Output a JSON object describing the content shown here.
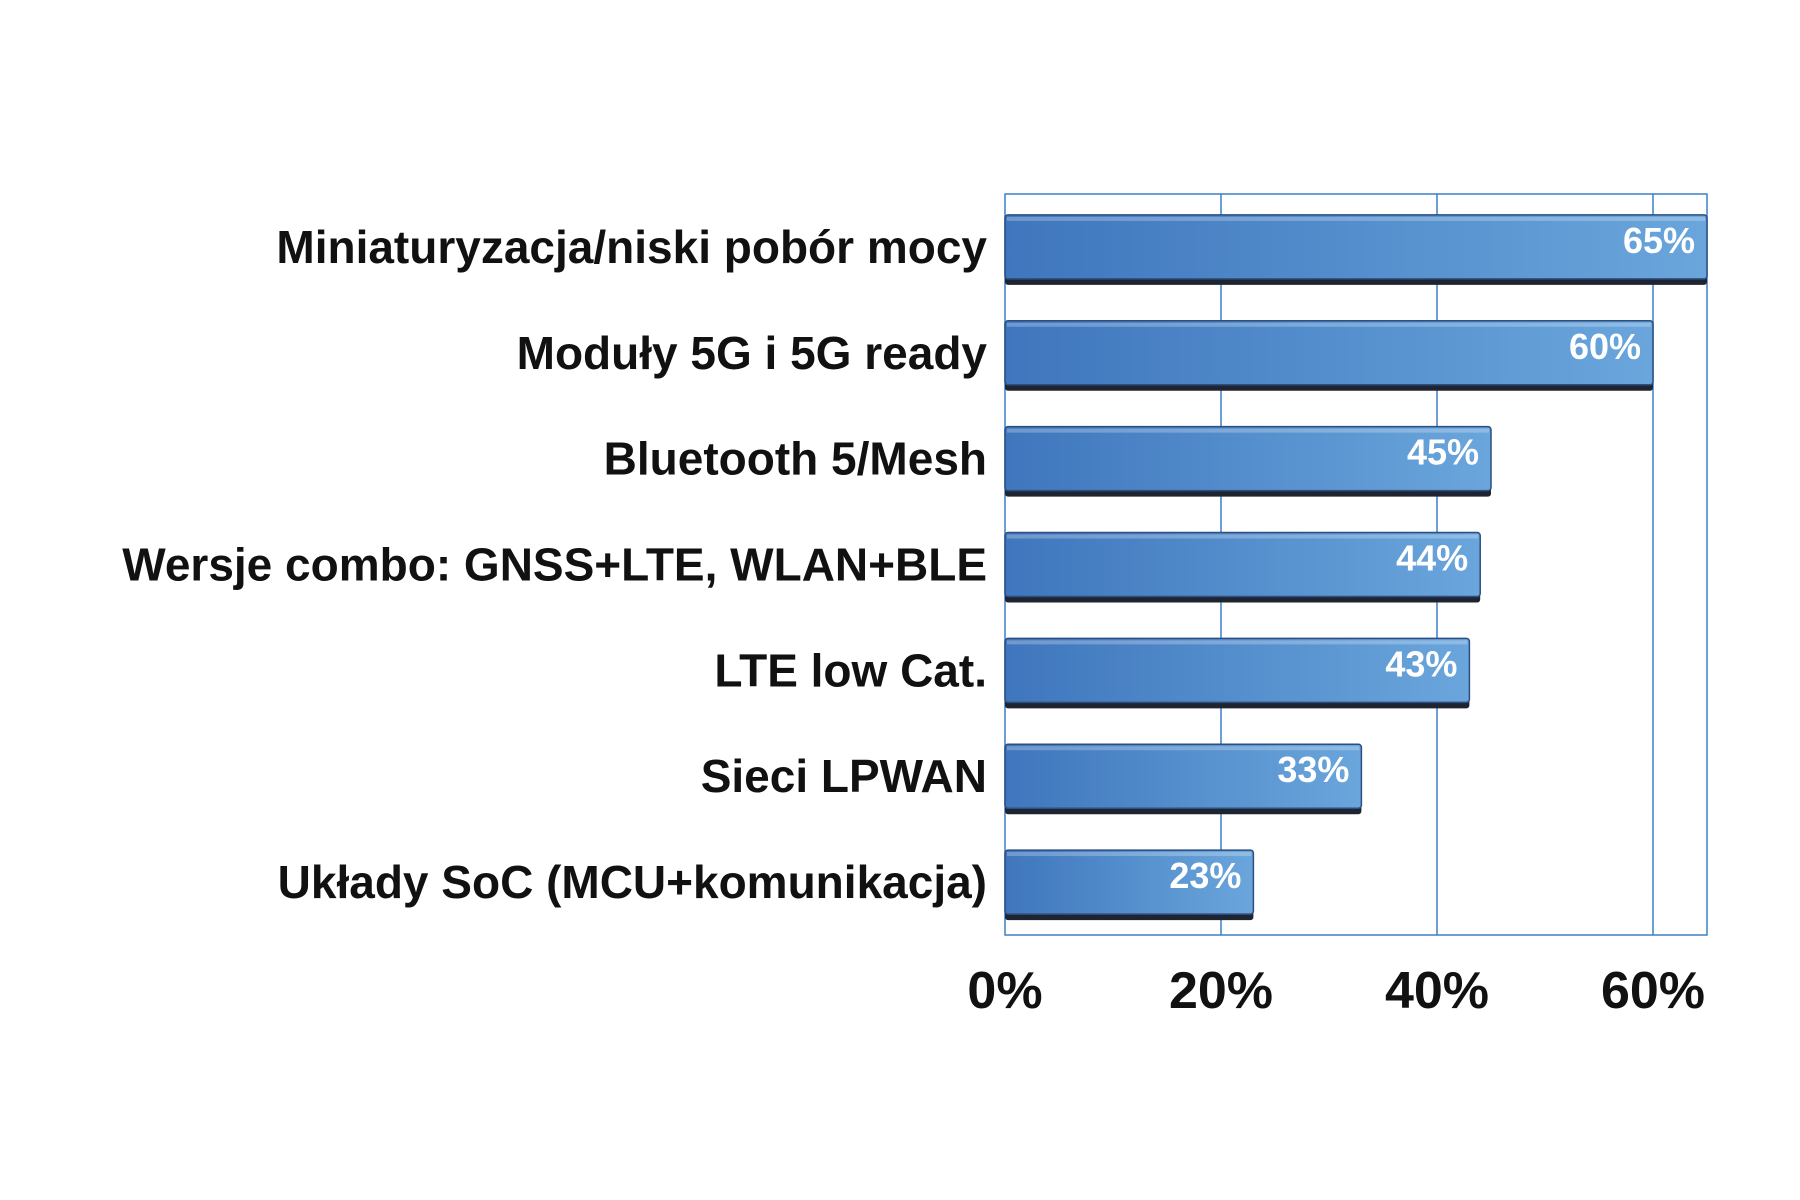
{
  "chart_data": {
    "type": "bar",
    "orientation": "horizontal",
    "categories": [
      "Miniaturyzacja/niski pobór mocy",
      "Moduły 5G i 5G ready",
      "Bluetooth 5/Mesh",
      "Wersje combo: GNSS+LTE, WLAN+BLE",
      "LTE low Cat.",
      "Sieci LPWAN",
      "Układy SoC (MCU+komunikacja)"
    ],
    "values": [
      65,
      60,
      45,
      44,
      43,
      33,
      23
    ],
    "data_labels": [
      "65%",
      "60%",
      "45%",
      "44%",
      "43%",
      "33%",
      "23%"
    ],
    "x_ticks": [
      0,
      20,
      40,
      60
    ],
    "x_tick_labels": [
      "0%",
      "20%",
      "40%",
      "60%"
    ],
    "xlim": [
      0,
      65
    ],
    "grid": true,
    "colors": {
      "bar_light": "#6aa6dc",
      "bar_dark": "#3f76bd",
      "bar_edge": "#2c4f7f",
      "bar_shadow": "#1f2530",
      "grid": "#3f7fc8"
    }
  }
}
